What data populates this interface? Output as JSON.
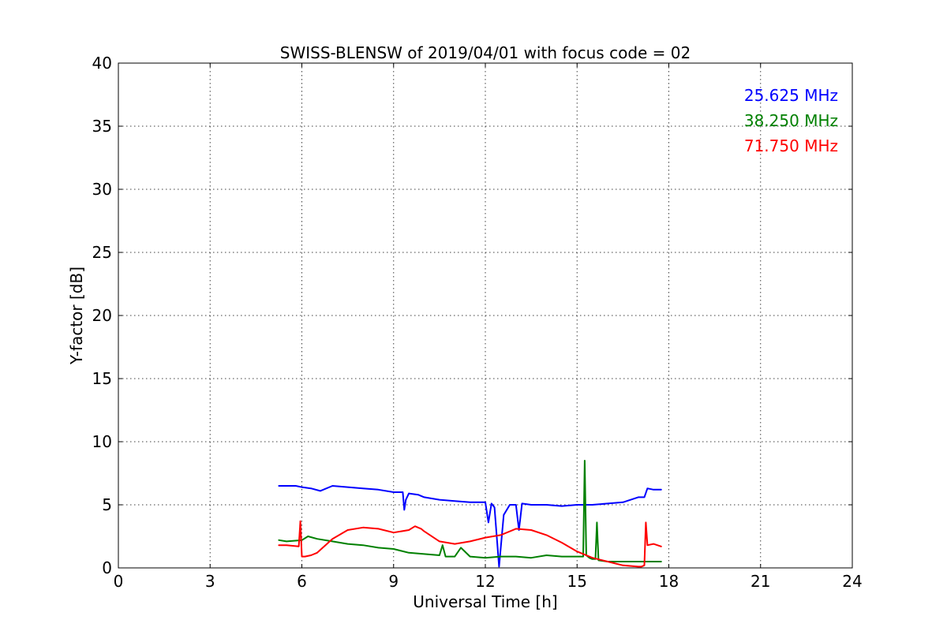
{
  "chart_data": {
    "type": "line",
    "title": "SWISS-BLENSW of 2019/04/01 with focus code = 02",
    "xlabel": "Universal Time [h]",
    "ylabel": "Y-factor [dB]",
    "xlim": [
      0,
      24
    ],
    "ylim": [
      0,
      40
    ],
    "xticks": [
      0,
      3,
      6,
      9,
      12,
      15,
      18,
      21,
      24
    ],
    "yticks": [
      0,
      5,
      10,
      15,
      20,
      25,
      30,
      35,
      40
    ],
    "grid": true,
    "legend_position": "top-right",
    "series": [
      {
        "name": "25.625 MHz",
        "color": "#0000ff",
        "x": [
          5.25,
          5.5,
          5.8,
          6.0,
          6.3,
          6.6,
          7.0,
          7.5,
          8.0,
          8.5,
          9.0,
          9.3,
          9.35,
          9.4,
          9.5,
          9.8,
          10.0,
          10.5,
          11.0,
          11.5,
          12.0,
          12.1,
          12.2,
          12.3,
          12.45,
          12.6,
          12.8,
          13.0,
          13.1,
          13.2,
          13.5,
          14.0,
          14.5,
          15.0,
          15.5,
          16.0,
          16.5,
          17.0,
          17.2,
          17.3,
          17.5,
          17.75
        ],
        "y": [
          6.5,
          6.5,
          6.5,
          6.4,
          6.3,
          6.1,
          6.5,
          6.4,
          6.3,
          6.2,
          6.0,
          6.0,
          4.6,
          5.4,
          5.9,
          5.8,
          5.6,
          5.4,
          5.3,
          5.2,
          5.2,
          3.6,
          5.1,
          4.8,
          0.1,
          4.2,
          5.0,
          5.0,
          3.0,
          5.1,
          5.0,
          5.0,
          4.9,
          5.0,
          5.0,
          5.1,
          5.2,
          5.6,
          5.6,
          6.3,
          6.2,
          6.2
        ]
      },
      {
        "name": "38.250 MHz",
        "color": "#008000",
        "x": [
          5.25,
          5.5,
          6.0,
          6.2,
          6.5,
          7.0,
          7.5,
          8.0,
          8.5,
          9.0,
          9.5,
          10.0,
          10.5,
          10.6,
          10.7,
          11.0,
          11.2,
          11.5,
          12.0,
          12.5,
          13.0,
          13.5,
          14.0,
          14.5,
          15.0,
          15.2,
          15.25,
          15.3,
          15.4,
          15.5,
          15.6,
          15.65,
          15.7,
          16.0,
          16.5,
          17.0,
          17.5,
          17.75
        ],
        "y": [
          2.2,
          2.1,
          2.2,
          2.5,
          2.3,
          2.1,
          1.9,
          1.8,
          1.6,
          1.5,
          1.2,
          1.1,
          1.0,
          1.8,
          0.9,
          0.9,
          1.6,
          0.9,
          0.8,
          0.9,
          0.9,
          0.8,
          1.0,
          0.9,
          0.9,
          0.9,
          8.5,
          1.0,
          0.8,
          0.7,
          0.7,
          3.6,
          0.6,
          0.5,
          0.5,
          0.5,
          0.5,
          0.5
        ]
      },
      {
        "name": "71.750 MHz",
        "color": "#ff0000",
        "x": [
          5.25,
          5.5,
          5.9,
          5.95,
          6.0,
          6.1,
          6.3,
          6.5,
          7.0,
          7.5,
          8.0,
          8.5,
          9.0,
          9.5,
          9.7,
          9.9,
          10.0,
          10.5,
          11.0,
          11.5,
          12.0,
          12.5,
          13.0,
          13.5,
          14.0,
          14.5,
          15.0,
          15.5,
          16.0,
          16.5,
          17.0,
          17.1,
          17.2,
          17.25,
          17.3,
          17.5,
          17.75
        ],
        "y": [
          1.8,
          1.8,
          1.7,
          3.7,
          0.9,
          0.9,
          1.0,
          1.2,
          2.3,
          3.0,
          3.2,
          3.1,
          2.8,
          3.0,
          3.3,
          3.1,
          2.9,
          2.1,
          1.9,
          2.1,
          2.4,
          2.6,
          3.1,
          3.0,
          2.6,
          2.0,
          1.3,
          0.8,
          0.5,
          0.2,
          0.1,
          0.1,
          0.2,
          3.6,
          1.8,
          1.9,
          1.7
        ]
      }
    ]
  }
}
